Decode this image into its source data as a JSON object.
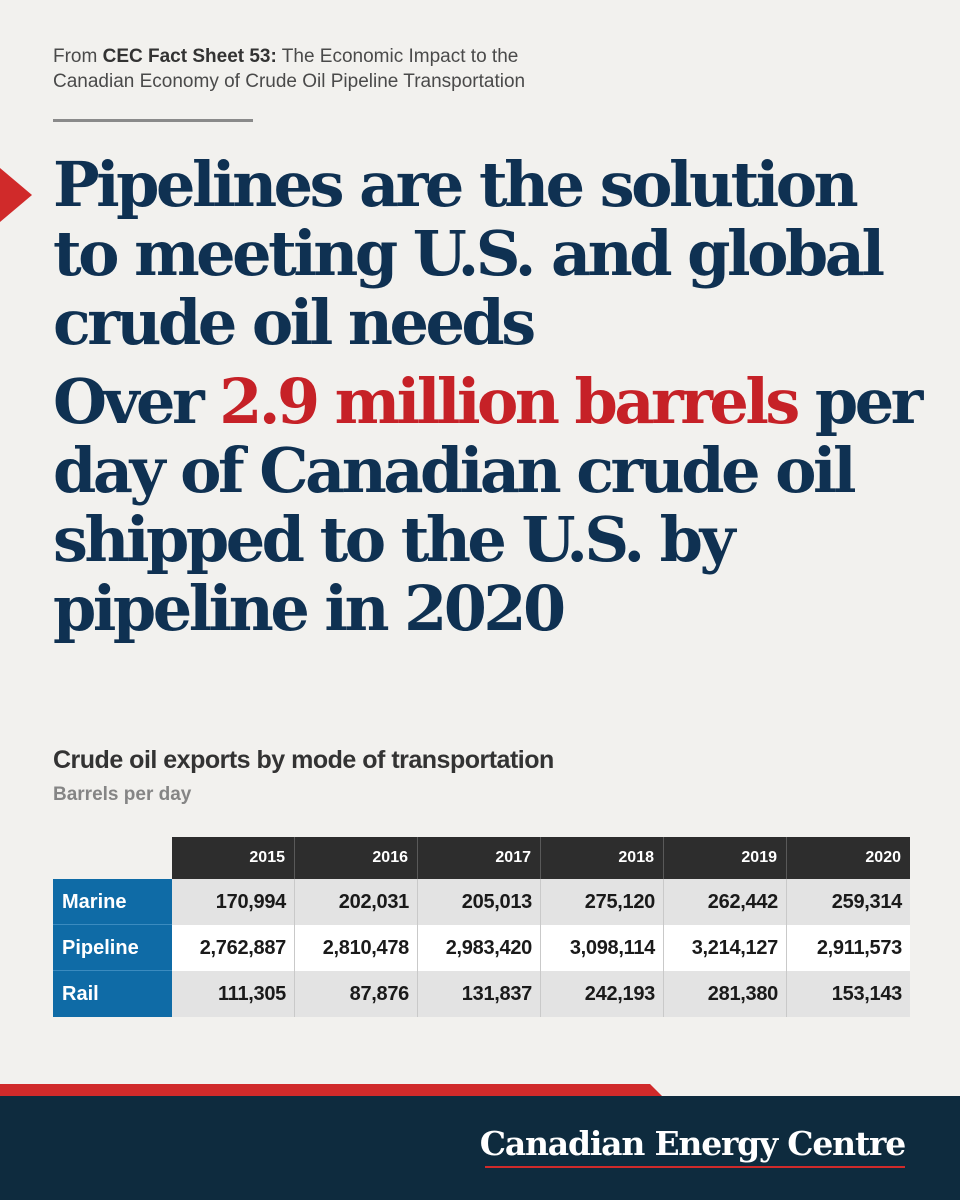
{
  "source": {
    "prefix": "From ",
    "sheet": "CEC Fact Sheet 53:",
    "text_line1": " The Economic Impact to the",
    "text_line2": "Canadian Economy of Crude Oil Pipeline Transportation"
  },
  "headline": {
    "line1": "Pipelines are the solution to meeting U.S. and global crude oil needs",
    "line2_pre": "Over ",
    "line2_highlight": "2.9 million barrels",
    "line2_post": " per day of Canadian crude oil shipped to the U.S. by pipeline in 2020"
  },
  "table": {
    "title": "Crude oil exports by mode of transportation",
    "subtitle": "Barrels per day",
    "columns": [
      "2015",
      "2016",
      "2017",
      "2018",
      "2019",
      "2020"
    ],
    "rows": [
      {
        "label": "Marine",
        "values": [
          "170,994",
          "202,031",
          "205,013",
          "275,120",
          "262,442",
          "259,314"
        ]
      },
      {
        "label": "Pipeline",
        "values": [
          "2,762,887",
          "2,810,478",
          "2,983,420",
          "3,098,114",
          "3,214,127",
          "2,911,573"
        ]
      },
      {
        "label": "Rail",
        "values": [
          "111,305",
          "87,876",
          "131,837",
          "242,193",
          "281,380",
          "153,143"
        ]
      }
    ]
  },
  "footer": {
    "brand": "Canadian Energy Centre"
  },
  "colors": {
    "navy": "#0f3152",
    "red": "#c62127",
    "blue": "#0f6ba6",
    "footer_bg": "#0e2b3e"
  }
}
